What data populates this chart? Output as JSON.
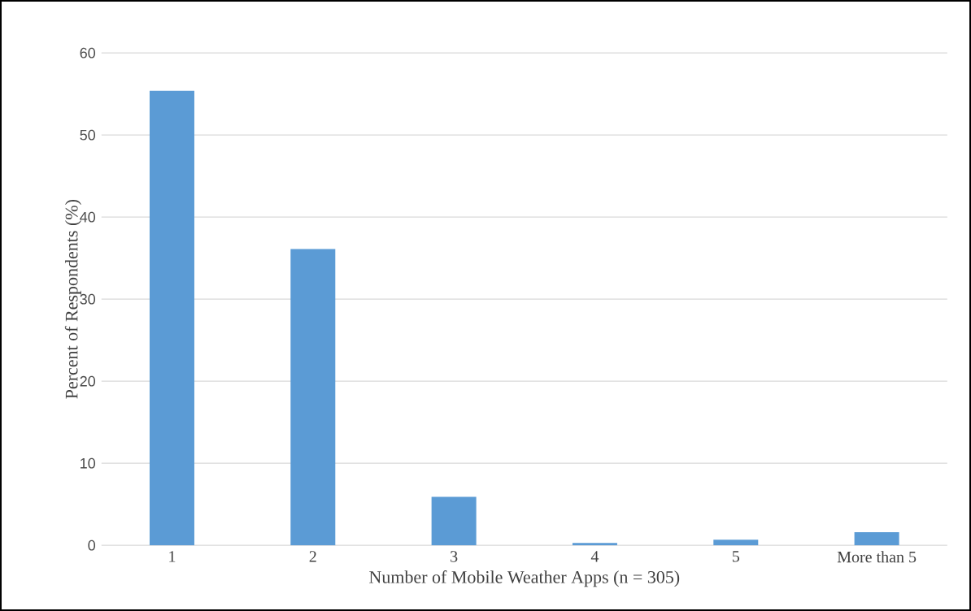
{
  "chart_data": {
    "type": "bar",
    "xlabel": "Number of Mobile Weather Apps (n = 305)",
    "ylabel": "Percent of Respondents (%)",
    "categories": [
      "1",
      "2",
      "3",
      "4",
      "5",
      "More than 5"
    ],
    "values": [
      55.4,
      36.1,
      5.9,
      0.3,
      0.7,
      1.6
    ],
    "color": "#5b9bd5",
    "ylim": [
      0,
      60
    ],
    "yticks": [
      0,
      10,
      20,
      30,
      40,
      50,
      60
    ],
    "grid": "y"
  }
}
